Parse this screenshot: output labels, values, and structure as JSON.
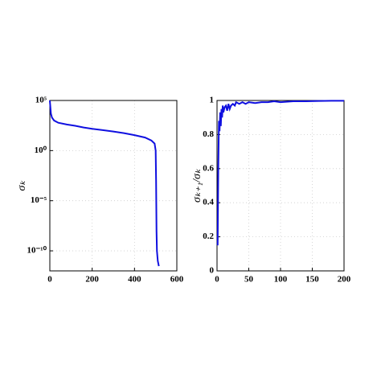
{
  "chart_data": [
    {
      "type": "line",
      "ylabel": "σₖ",
      "log_y": true,
      "grid": true,
      "color": "#1010e0",
      "x": [
        0,
        2,
        5,
        10,
        20,
        40,
        80,
        120,
        160,
        200,
        250,
        300,
        350,
        400,
        450,
        480,
        495,
        500,
        502,
        504,
        506,
        510,
        515
      ],
      "values": [
        100000,
        30000,
        5000,
        2000,
        1000,
        600,
        400,
        300,
        200,
        150,
        110,
        80,
        55,
        35,
        20,
        10,
        5,
        1,
        0.001,
        1e-08,
        1e-10,
        1e-11,
        3e-12
      ],
      "xlim": [
        0,
        600
      ],
      "xticks": [
        0,
        200,
        400,
        600
      ],
      "ylim": [
        1e-12,
        100000
      ],
      "yticks": [
        {
          "value": 100000,
          "label": "10⁵"
        },
        {
          "value": 1,
          "label": "10⁰"
        },
        {
          "value": 1e-05,
          "label": "10⁻⁵"
        },
        {
          "value": 1e-10,
          "label": "10⁻¹⁰"
        }
      ]
    },
    {
      "type": "line",
      "ylabel": "σₖ₊₁/σₖ",
      "log_y": false,
      "grid": true,
      "color": "#1010e0",
      "x": [
        1,
        2,
        3,
        4,
        5,
        6,
        7,
        8,
        9,
        10,
        12,
        14,
        16,
        18,
        20,
        22,
        25,
        28,
        30,
        35,
        40,
        45,
        50,
        60,
        70,
        80,
        90,
        100,
        120,
        140,
        160,
        180,
        200
      ],
      "values": [
        0.15,
        0.6,
        0.88,
        0.82,
        0.93,
        0.85,
        0.95,
        0.9,
        0.97,
        0.93,
        0.96,
        0.97,
        0.94,
        0.98,
        0.95,
        0.97,
        0.98,
        0.97,
        0.99,
        0.98,
        0.99,
        0.98,
        0.99,
        0.985,
        0.99,
        0.99,
        0.995,
        0.99,
        0.995,
        0.995,
        0.997,
        0.998,
        0.998
      ],
      "xlim": [
        0,
        200
      ],
      "xticks": [
        0,
        50,
        100,
        150,
        200
      ],
      "ylim": [
        0,
        1
      ],
      "yticks": [
        0,
        0.2,
        0.4,
        0.6,
        0.8,
        1
      ]
    }
  ]
}
